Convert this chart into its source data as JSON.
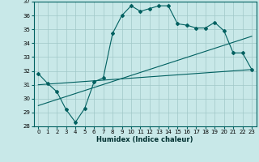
{
  "xlabel": "Humidex (Indice chaleur)",
  "ylabel": "",
  "bg_color": "#c8e8e8",
  "grid_color": "#a0c8c8",
  "line_color": "#006060",
  "xlim": [
    -0.5,
    23.5
  ],
  "ylim": [
    28,
    37
  ],
  "xticks": [
    0,
    1,
    2,
    3,
    4,
    5,
    6,
    7,
    8,
    9,
    10,
    11,
    12,
    13,
    14,
    15,
    16,
    17,
    18,
    19,
    20,
    21,
    22,
    23
  ],
  "yticks": [
    28,
    29,
    30,
    31,
    32,
    33,
    34,
    35,
    36,
    37
  ],
  "line1_x": [
    0,
    1,
    2,
    3,
    4,
    5,
    6,
    7,
    8,
    9,
    10,
    11,
    12,
    13,
    14,
    15,
    16,
    17,
    18,
    19,
    20,
    21,
    22,
    23
  ],
  "line1_y": [
    31.8,
    31.1,
    30.5,
    29.2,
    28.3,
    29.3,
    31.2,
    31.5,
    34.7,
    36.0,
    36.7,
    36.3,
    36.5,
    36.7,
    36.7,
    35.4,
    35.3,
    35.1,
    35.1,
    35.5,
    34.9,
    33.3,
    33.3,
    32.1
  ],
  "line2_x": [
    0,
    23
  ],
  "line2_y": [
    31.0,
    32.1
  ],
  "line3_x": [
    0,
    23
  ],
  "line3_y": [
    29.5,
    34.5
  ]
}
